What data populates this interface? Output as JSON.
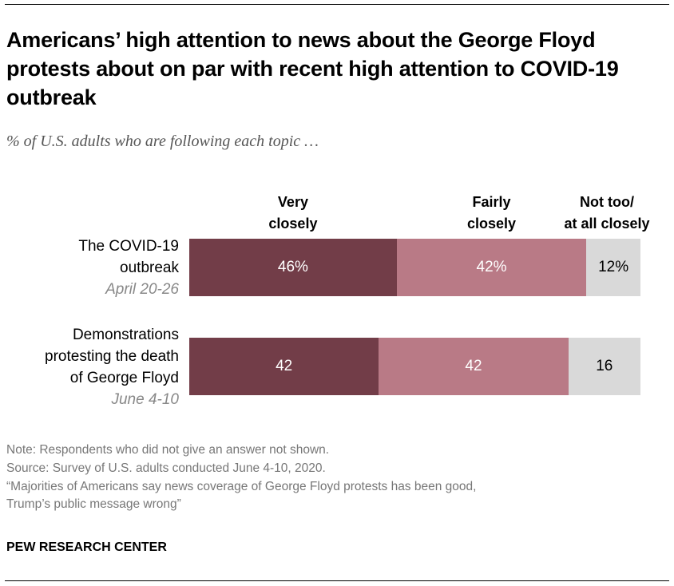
{
  "title": "Americans’ high attention to news about the George Floyd protests about on par with recent high attention to COVID-19 outbreak",
  "subtitle": "% of U.S. adults who are following each topic …",
  "chart_data": {
    "type": "bar",
    "orientation": "horizontal-stacked",
    "series": [
      {
        "name": "Very closely",
        "header": [
          "Very",
          "closely"
        ],
        "color": "#723d48",
        "text_color": "#ffffff",
        "values": [
          46,
          42
        ],
        "labels": [
          "46%",
          "42"
        ]
      },
      {
        "name": "Fairly closely",
        "header": [
          "Fairly",
          "closely"
        ],
        "color": "#b97a86",
        "text_color": "#ffffff",
        "values": [
          42,
          42
        ],
        "labels": [
          "42%",
          "42"
        ]
      },
      {
        "name": "Not too/at all closely",
        "header": [
          "Not too/",
          "at all closely"
        ],
        "color": "#d9d9d9",
        "text_color": "#000000",
        "values": [
          12,
          16
        ],
        "labels": [
          "12%",
          "16"
        ]
      }
    ],
    "categories": [
      {
        "label_lines": [
          "The COVID-19",
          "outbreak"
        ],
        "date": "April 20-26"
      },
      {
        "label_lines": [
          "Demonstrations",
          "protesting the death",
          "of George Floyd"
        ],
        "date": "June 4-10"
      }
    ],
    "xlim": [
      0,
      100
    ]
  },
  "notes": [
    "Note: Respondents who did not give an answer not shown.",
    "Source: Survey of U.S. adults conducted June 4-10, 2020.",
    "“Majorities of Americans say news coverage of George Floyd protests has been good,",
    "Trump’s public message wrong”"
  ],
  "source_org": "PEW RESEARCH CENTER"
}
